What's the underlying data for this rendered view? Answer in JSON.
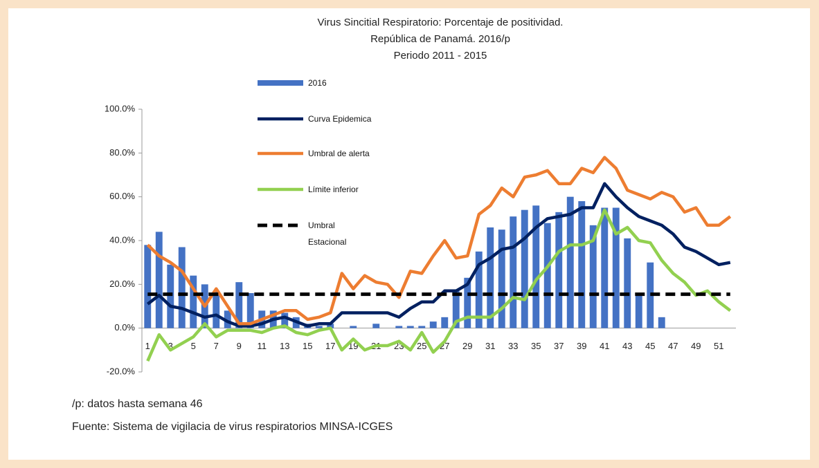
{
  "chart_data": {
    "type": "combo",
    "title": [
      "Virus Sincitial Respiratorio: Porcentaje de positividad.",
      "República de Panamá. 2016/p",
      "Periodo 2011 - 2015"
    ],
    "categories": [
      1,
      null,
      3,
      null,
      5,
      null,
      7,
      null,
      9,
      null,
      11,
      null,
      13,
      null,
      15,
      null,
      17,
      null,
      19,
      null,
      21,
      null,
      23,
      null,
      25,
      null,
      27,
      null,
      29,
      null,
      31,
      null,
      33,
      null,
      35,
      null,
      37,
      null,
      39,
      null,
      41,
      null,
      43,
      null,
      45,
      null,
      47,
      null,
      49,
      null,
      51,
      null
    ],
    "ylim": [
      -20,
      100
    ],
    "yticks": [
      {
        "value": -20,
        "label": "-20.0%"
      },
      {
        "value": 0,
        "label": "0.0%"
      },
      {
        "value": 20,
        "label": "20.0%"
      },
      {
        "value": 40,
        "label": "40.0%"
      },
      {
        "value": 60,
        "label": "60.0%"
      },
      {
        "value": 80,
        "label": "80.0%"
      },
      {
        "value": 100,
        "label": "100.0%"
      }
    ],
    "grid": false,
    "series": [
      {
        "name": "2016",
        "type": "bar",
        "color": "#4472c4",
        "values": [
          38,
          44,
          29,
          37,
          24,
          20,
          17,
          8,
          21,
          16,
          8,
          8,
          7,
          5,
          2,
          1,
          2,
          0,
          1,
          0,
          2,
          0,
          1,
          1,
          1,
          3,
          5,
          17,
          23,
          35,
          46,
          45,
          51,
          54,
          56,
          48,
          53,
          60,
          58,
          47,
          55,
          55,
          41,
          15,
          30,
          5,
          null,
          null,
          null,
          null,
          null,
          null
        ]
      },
      {
        "name": "Curva Epidemica",
        "type": "line",
        "color": "#002060",
        "values": [
          11,
          15,
          10,
          9,
          7,
          5,
          6,
          3,
          1,
          1,
          2,
          4,
          5,
          3,
          1,
          2,
          2,
          7,
          7,
          7,
          7,
          7,
          5,
          9,
          12,
          12,
          17,
          17,
          20,
          29,
          32,
          36,
          37,
          41,
          46,
          50,
          51,
          52,
          55,
          55,
          66,
          60,
          55,
          51,
          49,
          47,
          43,
          37,
          35,
          32,
          29,
          30
        ]
      },
      {
        "name": "Umbral de alerta",
        "type": "line",
        "color": "#ed7d31",
        "values": [
          38,
          33,
          30,
          26,
          18,
          10,
          18,
          10,
          2,
          2,
          4,
          6,
          8,
          8,
          4,
          5,
          7,
          25,
          18,
          24,
          21,
          20,
          14,
          26,
          25,
          33,
          40,
          32,
          33,
          52,
          56,
          64,
          60,
          69,
          70,
          72,
          66,
          66,
          73,
          71,
          78,
          73,
          63,
          61,
          59,
          62,
          60,
          53,
          55,
          47,
          47,
          51
        ]
      },
      {
        "name": "Límite inferior",
        "type": "line",
        "color": "#92d050",
        "values": [
          -15,
          -3,
          -10,
          -7,
          -4,
          2,
          -4,
          -1,
          -1,
          -1,
          -2,
          0,
          1,
          -2,
          -3,
          -1,
          0,
          -10,
          -5,
          -10,
          -8,
          -8,
          -6,
          -10,
          -2,
          -11,
          -6,
          3,
          5,
          5,
          5,
          9,
          14,
          13,
          22,
          28,
          35,
          38,
          38,
          40,
          54,
          43,
          46,
          40,
          39,
          31,
          25,
          21,
          15,
          17,
          12,
          8
        ]
      },
      {
        "name": "Umbral Estacional",
        "type": "line",
        "color": "#000000",
        "dashed": true,
        "values": [
          15.5,
          15.5,
          15.5,
          15.5,
          15.5,
          15.5,
          15.5,
          15.5,
          15.5,
          15.5,
          15.5,
          15.5,
          15.5,
          15.5,
          15.5,
          15.5,
          15.5,
          15.5,
          15.5,
          15.5,
          15.5,
          15.5,
          15.5,
          15.5,
          15.5,
          15.5,
          15.5,
          15.5,
          15.5,
          15.5,
          15.5,
          15.5,
          15.5,
          15.5,
          15.5,
          15.5,
          15.5,
          15.5,
          15.5,
          15.5,
          15.5,
          15.5,
          15.5,
          15.5,
          15.5,
          15.5,
          15.5,
          15.5,
          15.5,
          15.5,
          15.5,
          15.5
        ]
      }
    ],
    "notes": [
      "/p: datos hasta semana 46",
      "Fuente: Sistema de vigilacia de virus respiratorios MINSA-ICGES"
    ]
  }
}
